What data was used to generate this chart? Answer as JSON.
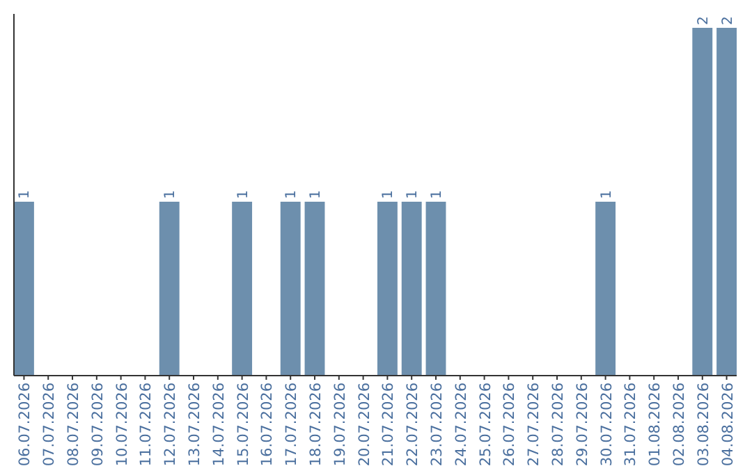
{
  "chart_data": {
    "type": "bar",
    "categories": [
      "06.07.2026",
      "07.07.2026",
      "08.07.2026",
      "09.07.2026",
      "10.07.2026",
      "11.07.2026",
      "12.07.2026",
      "13.07.2026",
      "14.07.2026",
      "15.07.2026",
      "16.07.2026",
      "17.07.2026",
      "18.07.2026",
      "19.07.2026",
      "20.07.2026",
      "21.07.2026",
      "22.07.2026",
      "23.07.2026",
      "24.07.2026",
      "25.07.2026",
      "26.07.2026",
      "27.07.2026",
      "28.07.2026",
      "29.07.2026",
      "30.07.2026",
      "31.07.2026",
      "01.08.2026",
      "02.08.2026",
      "03.08.2026",
      "04.08.2026"
    ],
    "values": [
      1,
      0,
      0,
      0,
      0,
      0,
      1,
      0,
      0,
      1,
      0,
      1,
      1,
      0,
      0,
      1,
      1,
      1,
      0,
      0,
      0,
      0,
      0,
      0,
      1,
      0,
      0,
      0,
      2,
      2
    ],
    "value_labels": [
      "1",
      null,
      null,
      null,
      null,
      null,
      "1",
      null,
      null,
      "1",
      null,
      "1",
      "1",
      null,
      null,
      "1",
      "1",
      "1",
      null,
      null,
      null,
      null,
      null,
      null,
      "1",
      null,
      null,
      null,
      "2",
      "2"
    ],
    "color": "#6d8fad",
    "ylim": [
      0,
      2.08
    ],
    "grid": false
  }
}
